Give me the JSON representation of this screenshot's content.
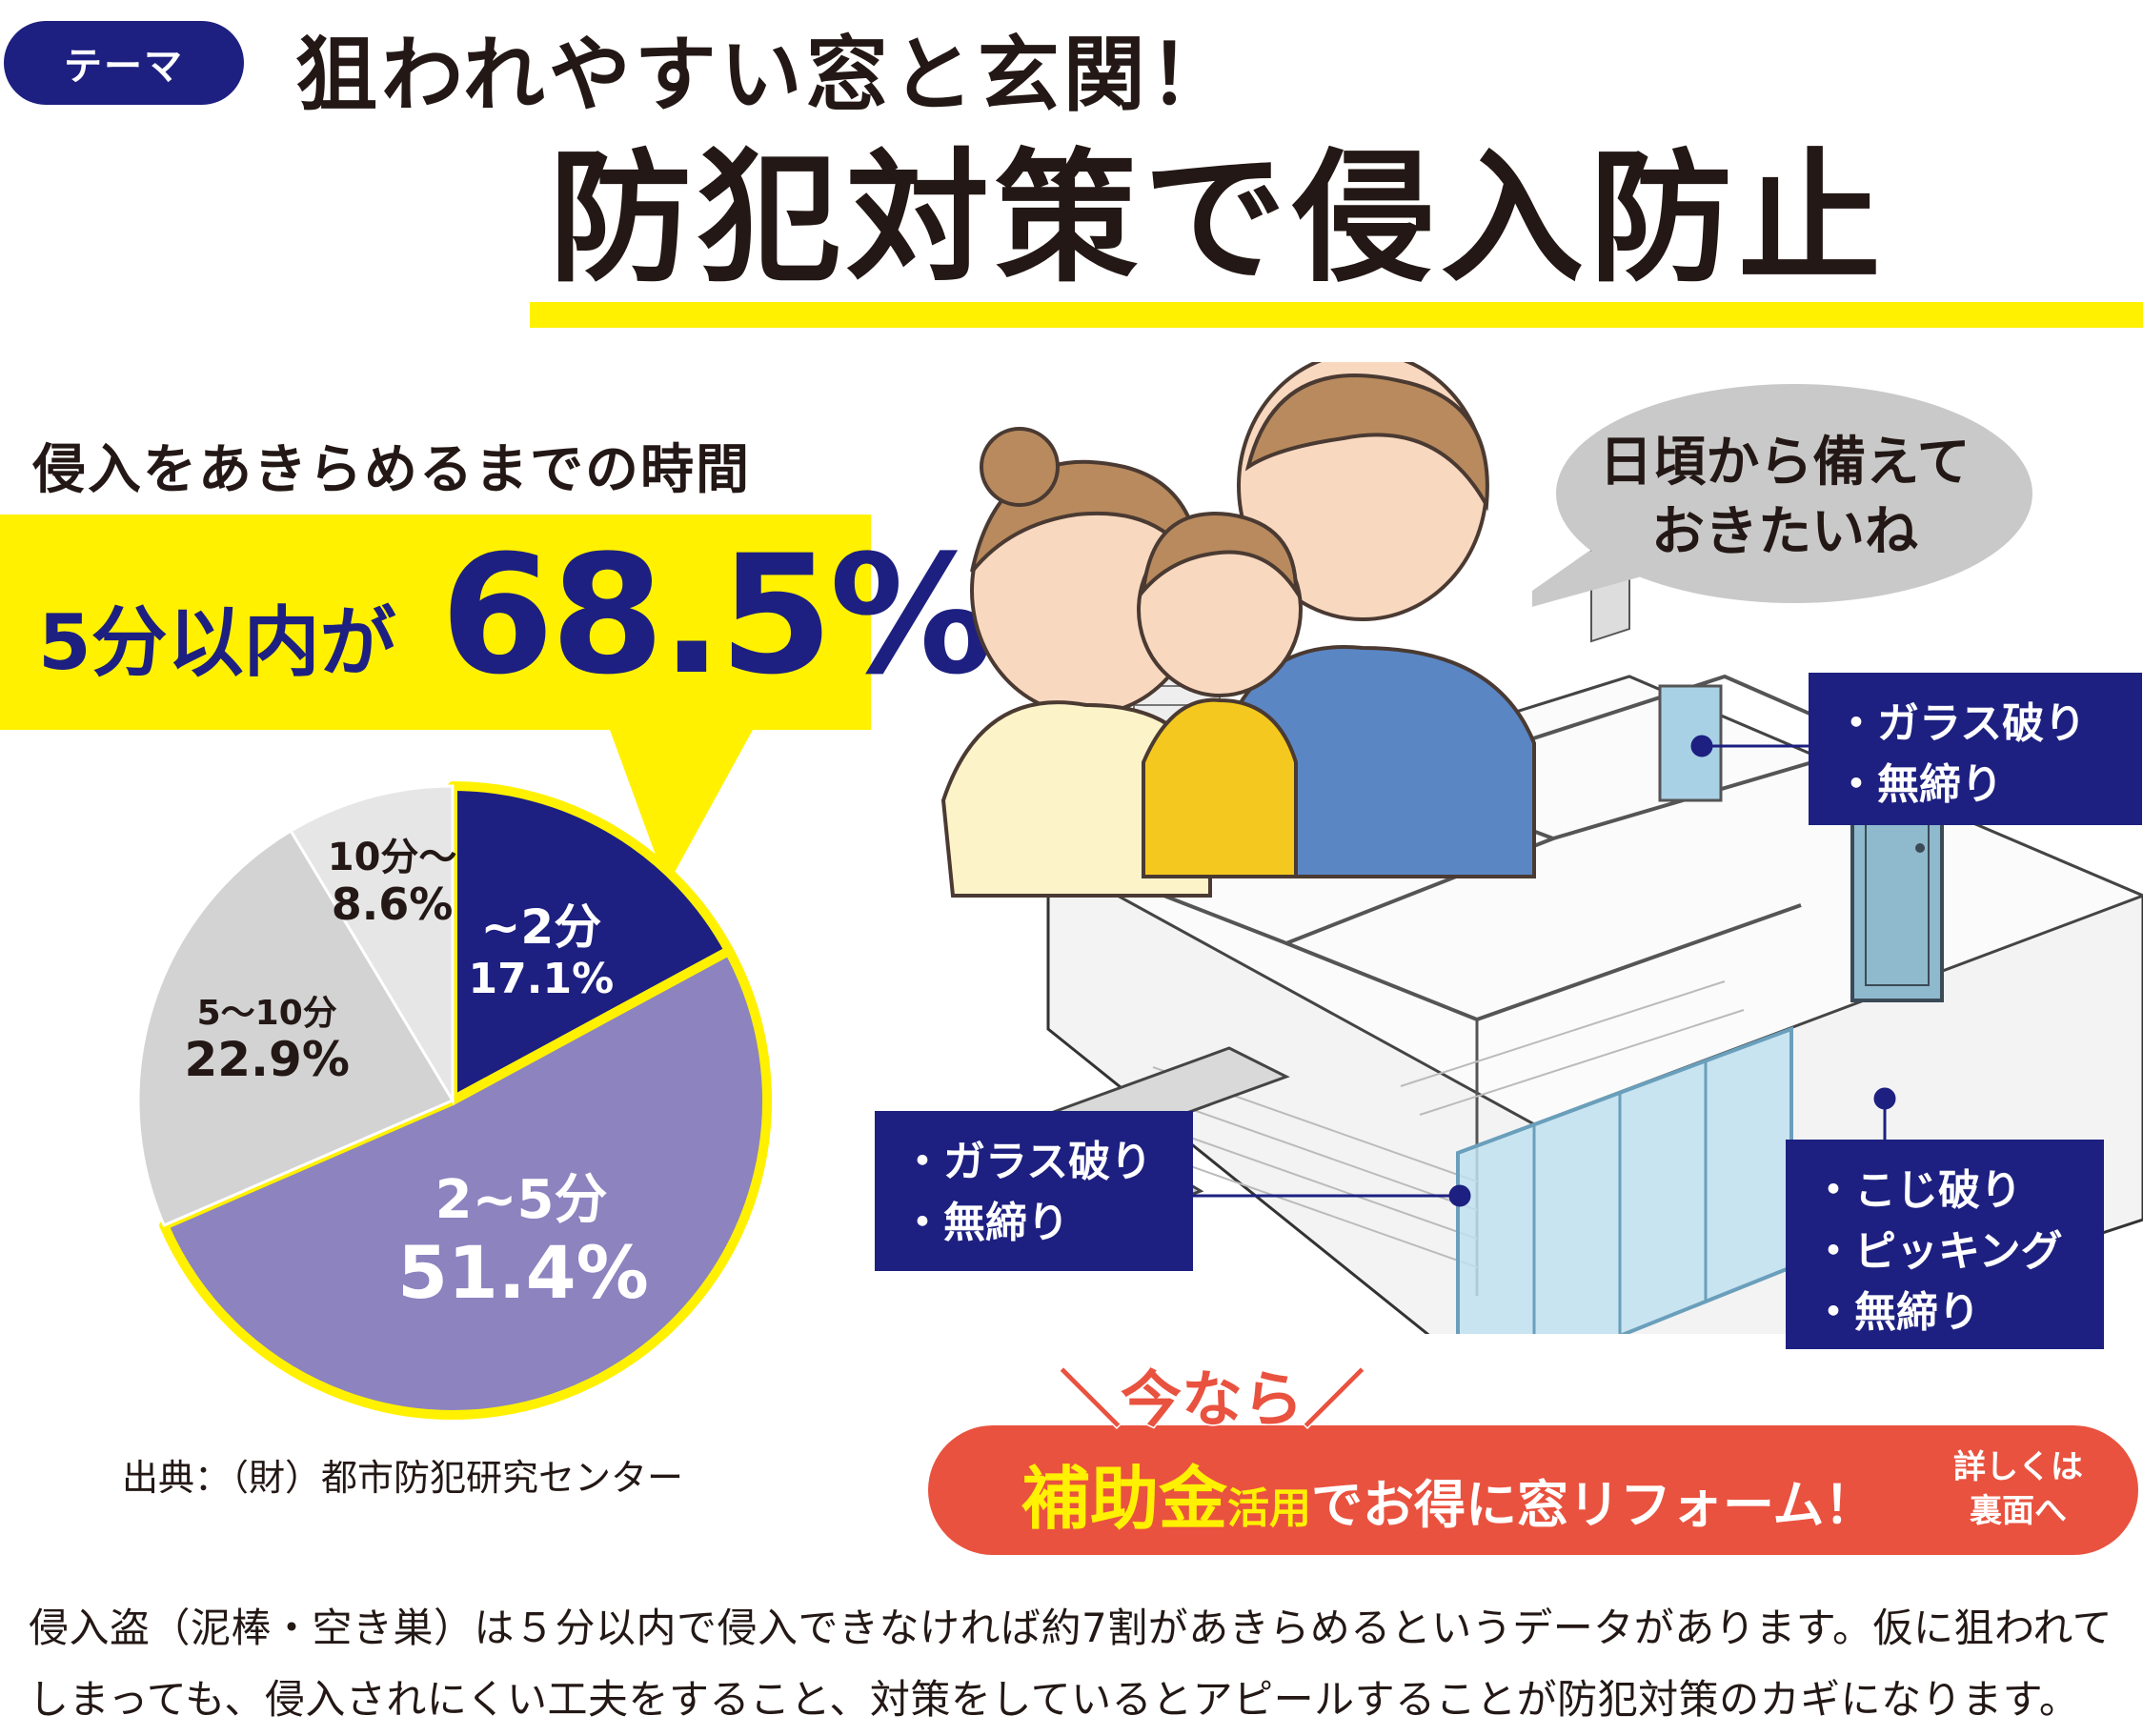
{
  "header": {
    "theme_label": "テーマ",
    "headline": "狙われやすい窓と玄関！",
    "main_title": "防犯対策で侵入防止"
  },
  "stat": {
    "caption": "侵入をあきらめるまでの時間",
    "lead": "5分以内が",
    "percent": "68.5%"
  },
  "chart_data": {
    "type": "pie",
    "title": "侵入をあきらめるまでの時間",
    "slices": [
      {
        "label": "~2分",
        "value": 17.1,
        "value_label": "17.1%",
        "color": "#1d2080",
        "text_color": "#ffffff"
      },
      {
        "label": "2~5分",
        "value": 51.4,
        "value_label": "51.4%",
        "color": "#8c83bf",
        "text_color": "#ffffff"
      },
      {
        "label": "5～10分",
        "value": 22.9,
        "value_label": "22.9%",
        "color": "#d3d3d3",
        "text_color": "#231815"
      },
      {
        "label": "10分～",
        "value": 8.6,
        "value_label": "8.6%",
        "color": "#e6e6e6",
        "text_color": "#231815"
      }
    ],
    "start": "12 o'clock, clockwise",
    "highlight_color": "#fff100"
  },
  "source": "出典：（財）都市防犯研究センター",
  "speech": {
    "line1": "日頃から備えて",
    "line2": "おきたいね"
  },
  "callouts": {
    "window_top": [
      "・ガラス破り",
      "・無締り"
    ],
    "window_left": [
      "・ガラス破り",
      "・無締り"
    ],
    "door": [
      "・こじ破り",
      "・ピッキング",
      "・無締り"
    ]
  },
  "banner": {
    "now": "＼今なら／",
    "subsidy": "補助金",
    "katsuyo": "活用",
    "rest": "でお得に窓リフォーム！",
    "note_line1": "詳しくは",
    "note_line2": "裏面へ"
  },
  "body_text": "侵入盗（泥棒・空き巣）は５分以内で侵入できなければ約7割があきらめるというデータがあります。仮に狙われてしまっても、侵入されにくい工夫をすること、対策をしているとアピールすることが防犯対策のカギになります。",
  "colors": {
    "navy": "#1d2080",
    "yellow": "#fff100",
    "banner_red": "#e9523f",
    "lavender": "#8c83bf"
  }
}
